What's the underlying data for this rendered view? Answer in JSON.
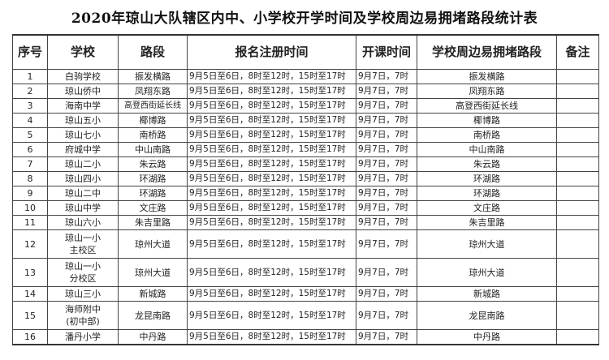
{
  "title": "2020年琼山大队辖区内中、小学校开学时间及学校周边易拥堵路段统计表",
  "headers": [
    "序号",
    "学校",
    "路段",
    "报名注册时间",
    "开课时间",
    "学校周边易拥堵路段",
    "备注"
  ],
  "rows": [
    {
      "no": "1",
      "school": "白驹学校",
      "road": "振发横路",
      "register": "9月5日至6日，8时至12时，15时至17时",
      "start": "9月7日，7时",
      "congested": "振发横路",
      "note": ""
    },
    {
      "no": "2",
      "school": "琼山侨中",
      "road": "凤翔东路",
      "register": "9月5日至6日，8时至12时，15时至17时",
      "start": "9月7日，7时",
      "congested": "凤翔东路",
      "note": ""
    },
    {
      "no": "3",
      "school": "海南中学",
      "road": "高登西街延长线",
      "register": "9月5日至6日，8时至12时，15时至17时",
      "start": "9月7日，7时",
      "congested": "高登西街延长线",
      "note": ""
    },
    {
      "no": "4",
      "school": "琼山五小",
      "road": "椰博路",
      "register": "9月5日至6日，8时至12时，15时至17时",
      "start": "9月7日，7时",
      "congested": "椰博路",
      "note": ""
    },
    {
      "no": "5",
      "school": "琼山七小",
      "road": "南桥路",
      "register": "9月5日至6日，8时至12时，15时至17时",
      "start": "9月7日，7时",
      "congested": "南桥路",
      "note": ""
    },
    {
      "no": "6",
      "school": "府城中学",
      "road": "中山南路",
      "register": "9月5日至6日，8时至12时，15时至17时",
      "start": "9月7日，7时",
      "congested": "中山南路",
      "note": ""
    },
    {
      "no": "7",
      "school": "琼山二小",
      "road": "朱云路",
      "register": "9月5日至6日，8时至12时，15时至17时",
      "start": "9月7日，7时",
      "congested": "朱云路",
      "note": ""
    },
    {
      "no": "8",
      "school": "琼山四小",
      "road": "环湖路",
      "register": "9月5日至6日，8时至12时，15时至17时",
      "start": "9月7日，7时",
      "congested": "环湖路",
      "note": ""
    },
    {
      "no": "9",
      "school": "琼山二中",
      "road": "环湖路",
      "register": "9月5日至6日，8时至12时，15时至17时",
      "start": "9月7日，7时",
      "congested": "环湖路",
      "note": ""
    },
    {
      "no": "10",
      "school": "琼山中学",
      "road": "文庄路",
      "register": "9月5日至6日，8时至12时，15时至17时",
      "start": "9月7日，7时",
      "congested": "文庄路",
      "note": ""
    },
    {
      "no": "11",
      "school": "琼山六小",
      "road": "朱吉里路",
      "register": "9月5日至6日，8时至12时，15时至17时",
      "start": "9月7日，7时",
      "congested": "朱吉里路",
      "note": ""
    },
    {
      "no": "12",
      "school": "琼山一小\n主校区",
      "road": "琼州大道",
      "register": "9月5日至6日，8时至12时，15时至17时",
      "start": "9月7日，7时",
      "congested": "琼州大道",
      "note": ""
    },
    {
      "no": "13",
      "school": "琼山一小\n分校区",
      "road": "琼州大道",
      "register": "9月5日至6日，8时至12时，15时至17时",
      "start": "9月7日，7时",
      "congested": "琼州大道",
      "note": ""
    },
    {
      "no": "14",
      "school": "琼山三小",
      "road": "新城路",
      "register": "9月5日至6日，8时至12时，15时至17时",
      "start": "9月7日，7时",
      "congested": "新城路",
      "note": ""
    },
    {
      "no": "15",
      "school": "海师附中\n(初中部)",
      "road": "龙昆南路",
      "register": "9月5日至6日，8时至12时，15时至17时",
      "start": "9月7日，7时",
      "congested": "龙昆南路",
      "note": ""
    },
    {
      "no": "16",
      "school": "潘丹小学",
      "road": "中丹路",
      "register": "9月5日至6日，8时至12时，15时至17时",
      "start": "9月7日，7时",
      "congested": "中丹路",
      "note": ""
    }
  ]
}
